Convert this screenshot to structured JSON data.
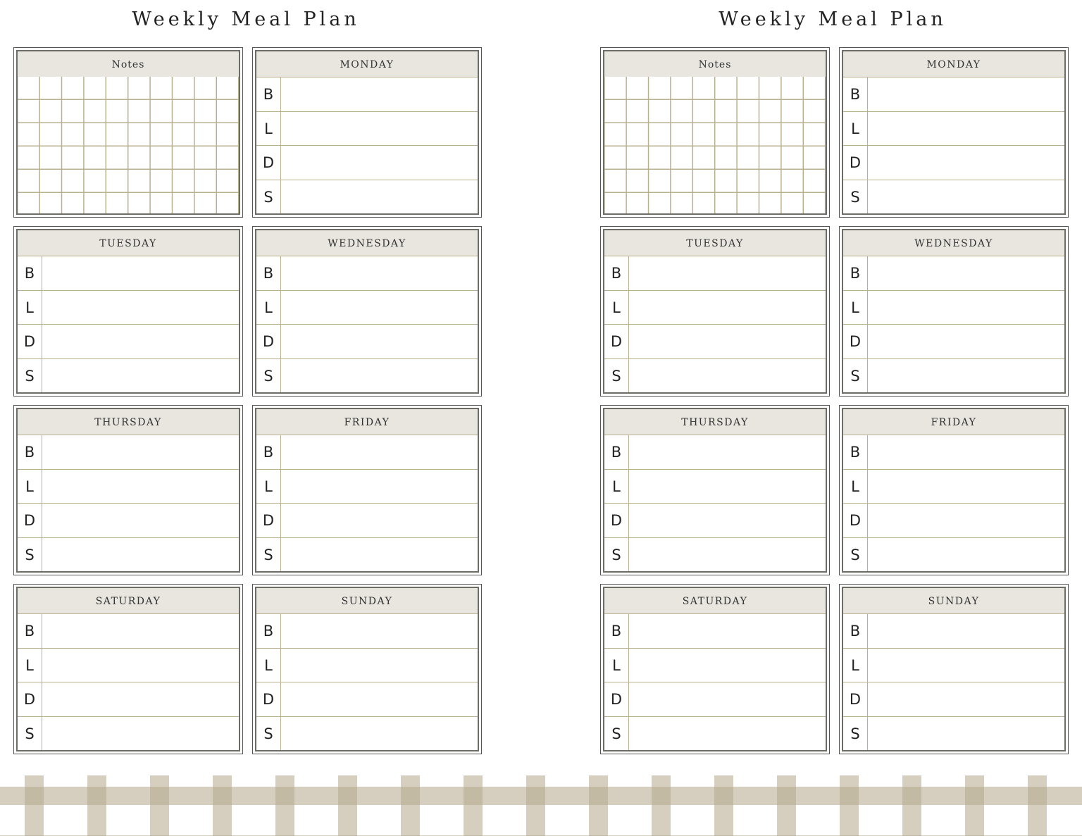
{
  "pages": [
    {
      "title": "Weekly Meal Plan",
      "notes_label": "Notes",
      "days": [
        "MONDAY",
        "TUESDAY",
        "WEDNESDAY",
        "THURSDAY",
        "FRIDAY",
        "SATURDAY",
        "SUNDAY"
      ]
    },
    {
      "title": "Weekly Meal Plan",
      "notes_label": "Notes",
      "days": [
        "MONDAY",
        "TUESDAY",
        "WEDNESDAY",
        "THURSDAY",
        "FRIDAY",
        "SATURDAY",
        "SUNDAY"
      ]
    }
  ],
  "meal_letters": [
    "B",
    "L",
    "D",
    "S"
  ],
  "colors": {
    "header_bg": "#e8e6df",
    "rule": "#b9b08f",
    "border": "#6d6d66",
    "gingham": "#b4a88c"
  }
}
